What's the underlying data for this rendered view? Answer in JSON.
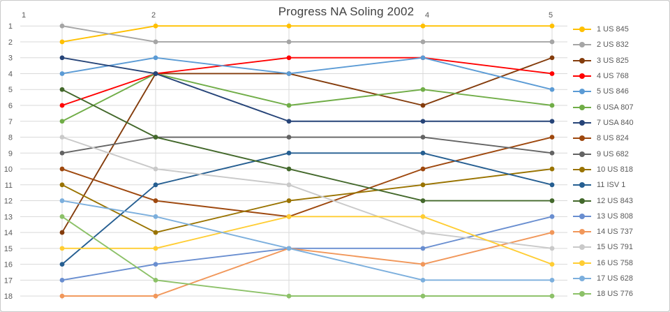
{
  "title": "Progress NA Soling 2002",
  "chart_data": {
    "type": "line",
    "title": "Progress NA Soling 2002",
    "x": [
      1,
      2,
      3,
      4,
      5
    ],
    "x_tick_labels_visible": [
      "1",
      "2",
      "4",
      "5"
    ],
    "xlabel": "",
    "ylabel": "",
    "y_ticks": [
      "1",
      "2",
      "3",
      "4",
      "5",
      "6",
      "7",
      "8",
      "9",
      "10",
      "11",
      "12",
      "13",
      "14",
      "15",
      "16",
      "17",
      "18"
    ],
    "y_axis": {
      "min": 1,
      "max": 18,
      "inverted": true,
      "meaning": "standing / rank"
    },
    "grid": true,
    "legend_position": "right",
    "series": [
      {
        "name": "1 US 845",
        "color": "#FFC000",
        "values": [
          2,
          1,
          1,
          1,
          1
        ]
      },
      {
        "name": "2 US 832",
        "color": "#A5A5A5",
        "values": [
          1,
          2,
          2,
          2,
          2
        ]
      },
      {
        "name": "3 US 825",
        "color": "#843C0C",
        "values": [
          14,
          4,
          4,
          6,
          3
        ]
      },
      {
        "name": "4 US 768",
        "color": "#FF0000",
        "values": [
          6,
          4,
          3,
          3,
          4
        ]
      },
      {
        "name": "5 US 846",
        "color": "#5B9BD5",
        "values": [
          4,
          3,
          4,
          3,
          5
        ]
      },
      {
        "name": "6 USA 807",
        "color": "#70AD47",
        "values": [
          7,
          4,
          6,
          5,
          6
        ]
      },
      {
        "name": "7 USA 840",
        "color": "#264478",
        "values": [
          3,
          4,
          7,
          7,
          7
        ]
      },
      {
        "name": "8 US 824",
        "color": "#9E480E",
        "values": [
          10,
          12,
          13,
          10,
          8
        ]
      },
      {
        "name": "9 US 682",
        "color": "#636363",
        "values": [
          9,
          8,
          8,
          8,
          9
        ]
      },
      {
        "name": "10 US 818",
        "color": "#997300",
        "values": [
          11,
          14,
          12,
          11,
          10
        ]
      },
      {
        "name": "11 ISV 1",
        "color": "#255E91",
        "values": [
          16,
          11,
          9,
          9,
          11
        ]
      },
      {
        "name": "12 US 843",
        "color": "#43682B",
        "values": [
          5,
          8,
          10,
          12,
          12
        ]
      },
      {
        "name": "13 US 808",
        "color": "#698ED0",
        "values": [
          17,
          16,
          15,
          15,
          13
        ]
      },
      {
        "name": "14 US 737",
        "color": "#F1975A",
        "values": [
          18,
          18,
          15,
          16,
          14
        ]
      },
      {
        "name": "15 US 791",
        "color": "#C9C9C9",
        "values": [
          8,
          10,
          11,
          14,
          15
        ]
      },
      {
        "name": "16 US 758",
        "color": "#FFCD33",
        "values": [
          15,
          15,
          13,
          13,
          16
        ]
      },
      {
        "name": "17 US 628",
        "color": "#7CAFDD",
        "values": [
          12,
          13,
          15,
          17,
          17
        ]
      },
      {
        "name": "18 US 776",
        "color": "#8CC168",
        "values": [
          13,
          17,
          18,
          18,
          18
        ]
      }
    ],
    "colors": {
      "gridline": "#D9D9D9",
      "axis_text": "#595959",
      "title_text": "#404040",
      "background": "#FFFFFF",
      "frame_border": "#C9C9C9"
    }
  }
}
